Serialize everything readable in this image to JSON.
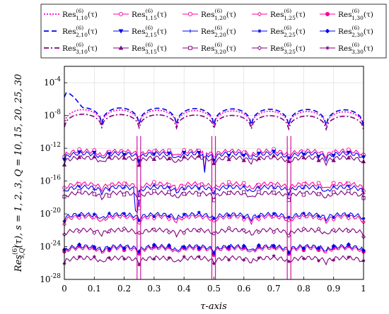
{
  "chart_data": {
    "type": "line",
    "title": "",
    "xlabel": "τ-axis",
    "ylabel": "Res(6)s,Q(τ),  s = 1, 2, 3,  Q = 10, 15, 20, 25, 30",
    "ylabel_parts": {
      "base": "Res",
      "sup": "(6)",
      "sub": "s,Q",
      "rest": "(τ),  s = 1, 2, 3,  Q = 10, 15, 20, 25, 30"
    },
    "xlim": [
      0,
      1
    ],
    "ylim_log10": [
      -28,
      -2
    ],
    "y_scale": "log",
    "grid": true,
    "legend_position": "top",
    "x_ticks": [
      "0",
      "0.1",
      "0.2",
      "0.3",
      "0.4",
      "0.5",
      "0.6",
      "0.7",
      "0.8",
      "0.9",
      "1"
    ],
    "x_tick_values": [
      0,
      0.1,
      0.2,
      0.3,
      0.4,
      0.5,
      0.6,
      0.7,
      0.8,
      0.9,
      1
    ],
    "y_tick_exponents": [
      -4,
      -8,
      -12,
      -16,
      -20,
      -24,
      -28
    ],
    "y_tick_base": "10",
    "series": [
      {
        "name": "Res(6)1,10(τ)",
        "lab_base": "Res",
        "lab_sup": "(6)",
        "lab_sub": "1,10",
        "lab_rest": "(τ)",
        "color": "#ff00cc",
        "dash": "2,2",
        "marker": "none",
        "base_log": -7.8,
        "amp": 1.1,
        "outlier": "none"
      },
      {
        "name": "Res(6)1,15(τ)",
        "lab_base": "Res",
        "lab_sup": "(6)",
        "lab_sub": "1,15",
        "lab_rest": "(τ)",
        "color": "#ff00a0",
        "dash": "",
        "marker": "circle-open",
        "base_log": -12.6,
        "amp": 0.7,
        "outlier": "0.47"
      },
      {
        "name": "Res(6)1,20(τ)",
        "lab_base": "Res",
        "lab_sup": "(6)",
        "lab_sub": "1,20",
        "lab_rest": "(τ)",
        "color": "#ff0099",
        "dash": "",
        "marker": "circle-open",
        "base_log": -16.6,
        "amp": 0.7,
        "outlier": "0.25"
      },
      {
        "name": "Res(6)1,25(τ)",
        "lab_base": "Res",
        "lab_sup": "(6)",
        "lab_sub": "1,25",
        "lab_rest": "(τ)",
        "color": "#ff0099",
        "dash": "",
        "marker": "diamond-open",
        "base_log": -20.6,
        "amp": 0.7,
        "outlier": "none"
      },
      {
        "name": "Res(6)1,30(τ)",
        "lab_base": "Res",
        "lab_sup": "(6)",
        "lab_sub": "1,30",
        "lab_rest": "(τ)",
        "color": "#ff0099",
        "dash": "",
        "marker": "circle-filled",
        "base_log": -24.4,
        "amp": 0.6,
        "outlier": "none"
      },
      {
        "name": "Res(6)2,10(τ)",
        "lab_base": "Res",
        "lab_sup": "(6)",
        "lab_sub": "2,10",
        "lab_rest": "(τ)",
        "color": "#0000ee",
        "dash": "7,4",
        "marker": "none",
        "base_log": -7.6,
        "amp": 1.2,
        "outlier": "none"
      },
      {
        "name": "Res(6)2,15(τ)",
        "lab_base": "Res",
        "lab_sup": "(6)",
        "lab_sub": "2,15",
        "lab_rest": "(τ)",
        "color": "#0000ee",
        "dash": "",
        "marker": "triangle-down-filled",
        "base_log": -12.9,
        "amp": 0.7,
        "outlier": "0.47"
      },
      {
        "name": "Res(6)2,20(τ)",
        "lab_base": "Res",
        "lab_sup": "(6)",
        "lab_sub": "2,20",
        "lab_rest": "(τ)",
        "color": "#0000ee",
        "dash": "",
        "marker": "plus",
        "base_log": -17.0,
        "amp": 0.7,
        "outlier": "0.24"
      },
      {
        "name": "Res(6)2,25(τ)",
        "lab_base": "Res",
        "lab_sup": "(6)",
        "lab_sub": "2,25",
        "lab_rest": "(τ)",
        "color": "#0000ee",
        "dash": "",
        "marker": "star",
        "base_log": -20.3,
        "amp": 0.6,
        "outlier": "none"
      },
      {
        "name": "Res(6)2,30(τ)",
        "lab_base": "Res",
        "lab_sup": "(6)",
        "lab_sub": "2,30",
        "lab_rest": "(τ)",
        "color": "#0000ee",
        "dash": "",
        "marker": "diamond-filled",
        "base_log": -24.2,
        "amp": 0.6,
        "outlier": "none"
      },
      {
        "name": "Res(6)3,10(τ)",
        "lab_base": "Res",
        "lab_sup": "(6)",
        "lab_sub": "3,10",
        "lab_rest": "(τ)",
        "color": "#800080",
        "dash": "7,3,2,3",
        "marker": "none",
        "base_log": -8.3,
        "amp": 1.0,
        "outlier": "none"
      },
      {
        "name": "Res(6)3,15(τ)",
        "lab_base": "Res",
        "lab_sup": "(6)",
        "lab_sub": "3,15",
        "lab_rest": "(τ)",
        "color": "#800080",
        "dash": "",
        "marker": "triangle-up-filled",
        "base_log": -13.4,
        "amp": 0.7,
        "outlier": "none"
      },
      {
        "name": "Res(6)3,20(τ)",
        "lab_base": "Res",
        "lab_sup": "(6)",
        "lab_sub": "3,20",
        "lab_rest": "(τ)",
        "color": "#800080",
        "dash": "",
        "marker": "square-open",
        "base_log": -17.7,
        "amp": 0.7,
        "outlier": "none"
      },
      {
        "name": "Res(6)3,25(τ)",
        "lab_base": "Res",
        "lab_sup": "(6)",
        "lab_sub": "3,25",
        "lab_rest": "(τ)",
        "color": "#800080",
        "dash": "",
        "marker": "diamond-open",
        "base_log": -22.2,
        "amp": 0.6,
        "outlier": "none"
      },
      {
        "name": "Res(6)3,30(τ)",
        "lab_base": "Res",
        "lab_sup": "(6)",
        "lab_sub": "3,30",
        "lab_rest": "(τ)",
        "color": "#800080",
        "dash": "",
        "marker": "star",
        "base_log": -25.6,
        "amp": 0.6,
        "outlier": "none"
      }
    ]
  }
}
